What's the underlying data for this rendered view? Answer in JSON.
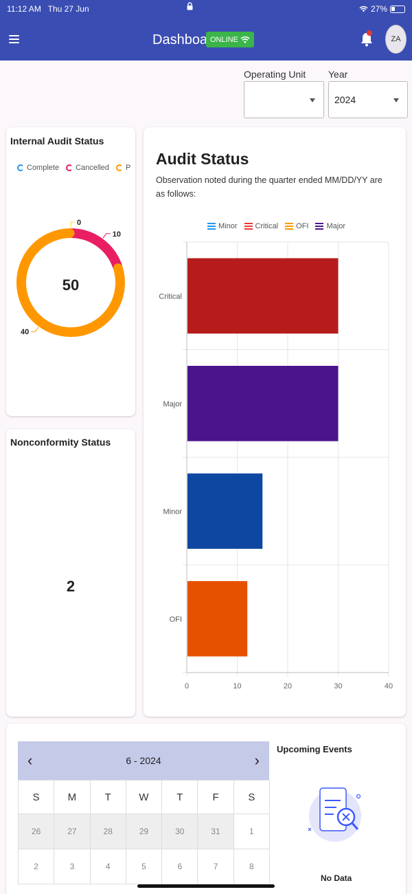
{
  "status_bar": {
    "time": "11:12 AM",
    "date": "Thu 27 Jun",
    "battery": "27%"
  },
  "header": {
    "title": "Dashboard",
    "badge": "ONLINE",
    "avatar_initials": "ZA"
  },
  "filters": {
    "operating_unit": {
      "label": "Operating Unit",
      "value": ""
    },
    "year": {
      "label": "Year",
      "value": "2024"
    }
  },
  "internal_audit": {
    "title": "Internal Audit Status",
    "center_value": "50",
    "legend": [
      {
        "label": "Complete",
        "color": "#2196f3"
      },
      {
        "label": "Cancelled",
        "color": "#e91e63"
      },
      {
        "label": "Plar",
        "color": "#ff9800"
      }
    ],
    "chart_data": {
      "type": "pie",
      "categories": [
        "Complete",
        "Cancelled",
        "Planned"
      ],
      "values": [
        0,
        10,
        40
      ],
      "data_labels": [
        "0",
        "10",
        "40"
      ],
      "colors": [
        "#fdd835",
        "#e91e63",
        "#ff9800"
      ]
    }
  },
  "nonconformity": {
    "title": "Nonconformity Status",
    "value": "2"
  },
  "audit_status": {
    "title": "Audit Status",
    "subtitle": "Observation noted during the quarter ended MM/DD/YY are as follows:",
    "legend": [
      {
        "label": "Minor",
        "color": "#2196f3"
      },
      {
        "label": "Critical",
        "color": "#e53935"
      },
      {
        "label": "OFI",
        "color": "#ff9800"
      },
      {
        "label": "Major",
        "color": "#4a148c"
      }
    ],
    "chart_data": {
      "type": "bar",
      "orientation": "horizontal",
      "categories": [
        "Critical",
        "Major",
        "Minor",
        "OFI"
      ],
      "values": [
        30,
        30,
        15,
        12
      ],
      "colors": [
        "#b71c1c",
        "#4a148c",
        "#0d47a1",
        "#e65100"
      ],
      "xlim": [
        0,
        40
      ],
      "xticks": [
        "0",
        "10",
        "20",
        "30",
        "40"
      ],
      "grid": true
    }
  },
  "calendar": {
    "month_label": "6 - 2024",
    "weekdays": [
      "S",
      "M",
      "T",
      "W",
      "T",
      "F",
      "S"
    ],
    "rows": [
      [
        "26",
        "27",
        "28",
        "29",
        "30",
        "31",
        "1"
      ],
      [
        "2",
        "3",
        "4",
        "5",
        "6",
        "7",
        "8"
      ]
    ]
  },
  "upcoming": {
    "title": "Upcoming Events",
    "empty_text": "No Data"
  }
}
